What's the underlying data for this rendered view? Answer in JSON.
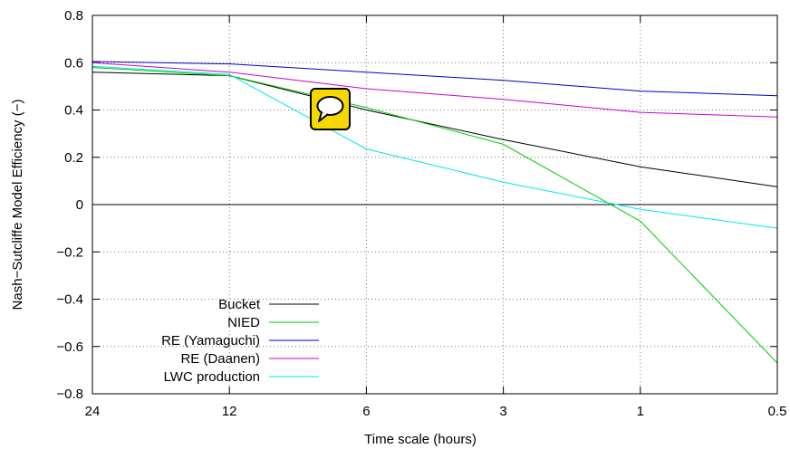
{
  "chart_data": {
    "type": "line",
    "xlabel": "Time scale (hours)",
    "ylabel": "Nash−Sutcliffe Model Efficiency (−)",
    "x_ticks": [
      "24",
      "12",
      "6",
      "3",
      "1",
      "0.5"
    ],
    "x": [
      24,
      12,
      6,
      3,
      1,
      0.5
    ],
    "ylim": [
      -0.8,
      0.8
    ],
    "y_ticks": [
      "−0.8",
      "−0.6",
      "−0.4",
      "−0.2",
      "0",
      "0.2",
      "0.4",
      "0.6",
      "0.8"
    ],
    "y_tick_values": [
      -0.8,
      -0.6,
      -0.4,
      -0.2,
      0,
      0.2,
      0.4,
      0.6,
      0.8
    ],
    "grid": true,
    "legend_position": "bottom-left",
    "series": [
      {
        "name": "Bucket",
        "color": "#000000",
        "values": [
          0.56,
          0.545,
          0.4,
          0.275,
          0.16,
          0.075
        ]
      },
      {
        "name": "NIED",
        "color": "#00cc00",
        "values": [
          0.58,
          0.545,
          0.41,
          0.255,
          -0.07,
          -0.67
        ]
      },
      {
        "name": "RE (Yamaguchi)",
        "color": "#0000cc",
        "values": [
          0.605,
          0.595,
          0.56,
          0.525,
          0.48,
          0.46
        ]
      },
      {
        "name": "RE (Daanen)",
        "color": "#cc00cc",
        "values": [
          0.6,
          0.56,
          0.49,
          0.445,
          0.39,
          0.37
        ]
      },
      {
        "name": "LWC production",
        "color": "#00e6e6",
        "values": [
          0.585,
          0.55,
          0.235,
          0.095,
          -0.02,
          -0.1
        ]
      }
    ]
  },
  "overlay": {
    "icon": "speech-bubble-icon",
    "background_color": "#f5d800"
  }
}
